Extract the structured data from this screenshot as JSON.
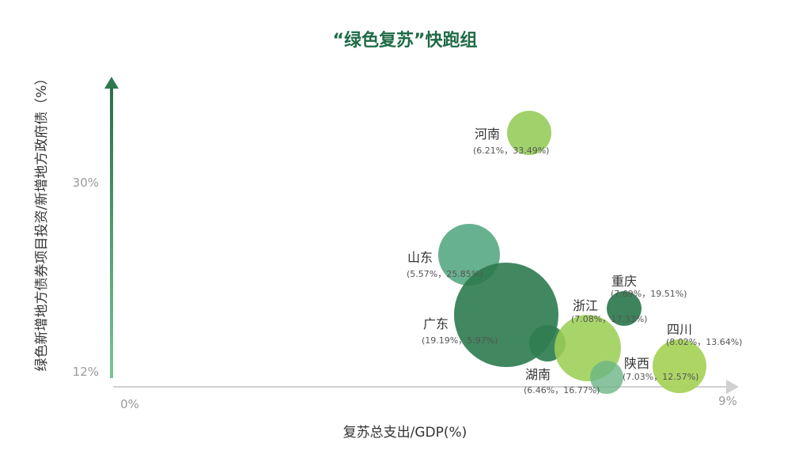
{
  "chart_data": {
    "type": "scatter",
    "title": "“绿色复苏”快跑组",
    "xlabel": "复苏总支出/GDP(%)",
    "ylabel": "绿色新增地方债券项目投资/新增地方政府债（%）",
    "x_ticks": [
      "0%",
      "9%"
    ],
    "y_ticks": [
      "12%",
      "30%"
    ],
    "points": [
      {
        "name": "河南",
        "label": "(6.21%，33.49%)",
        "color": "#9ccf63",
        "opacity": 0.95
      },
      {
        "name": "山东",
        "label": "(5.57%，25.85%)",
        "color": "#58a983",
        "opacity": 0.9
      },
      {
        "name": "广东",
        "label": "(19.19%，5.97%)",
        "color": "#2c7a4e",
        "opacity": 0.9
      },
      {
        "name": "湖南",
        "label": "(6.46%，16.77%)",
        "color": "#2f7d51",
        "opacity": 0.92
      },
      {
        "name": "浙江",
        "label": "(7.08%，17.33%)",
        "color": "#9ccf54",
        "opacity": 0.88
      },
      {
        "name": "重庆",
        "label": "(7.69%，19.51%)",
        "color": "#2c7a4e",
        "opacity": 0.92
      },
      {
        "name": "陕西",
        "label": "(7.03%，12.57%)",
        "color": "#6bb487",
        "opacity": 0.8
      },
      {
        "name": "四川",
        "label": "(8.02%，13.64%)",
        "color": "#a8d35c",
        "opacity": 0.95
      }
    ],
    "colors": {
      "title": "#1f6b45",
      "axis_arrow": "#2c7a4e",
      "x_axis": "#d0d0d0",
      "tick_text": "#9a9a9a",
      "axis_label": "#333333"
    }
  }
}
